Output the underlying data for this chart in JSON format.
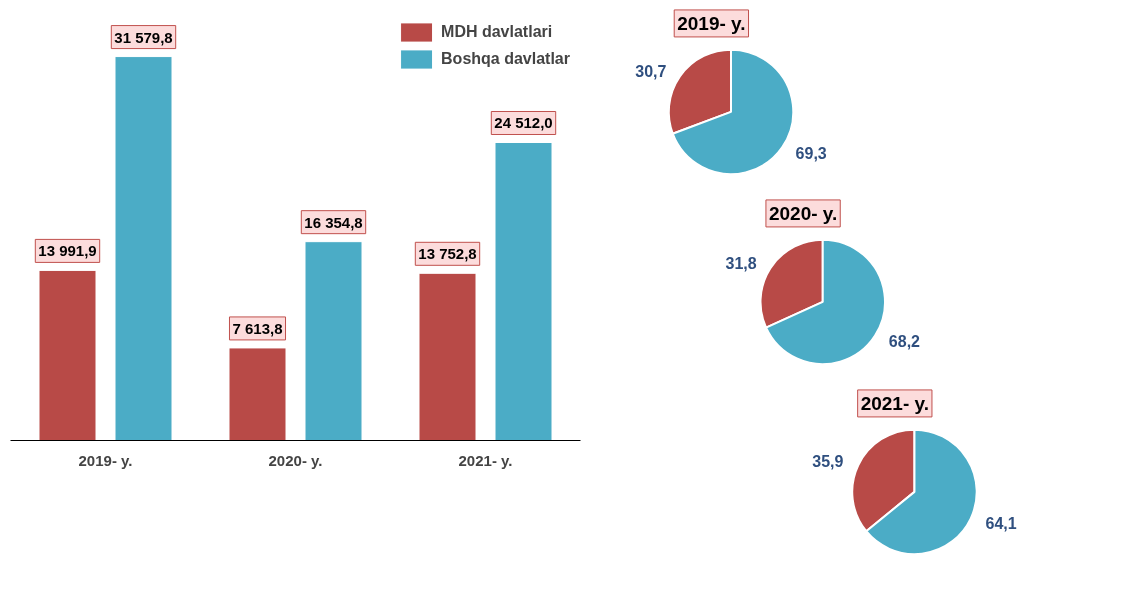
{
  "chart_data": [
    {
      "type": "bar",
      "categories": [
        "2019- y.",
        "2020- y.",
        "2021- y."
      ],
      "legend": "top right",
      "grid": false,
      "series": [
        {
          "name": "MDH davlatlari",
          "color": "#b84a47",
          "values": [
            13991.9,
            7613.8,
            13752.8
          ],
          "value_labels": [
            "13 991,9",
            "7 613,8",
            "13 752,8"
          ]
        },
        {
          "name": "Boshqa davlatlar",
          "color": "#4bacc6",
          "values": [
            31579.8,
            16354.8,
            24512.0
          ],
          "value_labels": [
            "31 579,8",
            "16 354,8",
            "24 512,0"
          ]
        }
      ]
    },
    {
      "type": "pie",
      "title": "2019- y.",
      "categories": [
        null,
        null
      ],
      "values": [
        30.7,
        69.3
      ],
      "colors": [
        "#b84a47",
        "#4bacc6"
      ],
      "value_labels": [
        "30,7",
        "69,3"
      ]
    },
    {
      "type": "pie",
      "title": "2020- y.",
      "categories": [
        null,
        null
      ],
      "values": [
        31.8,
        68.2
      ],
      "colors": [
        "#b84a47",
        "#4bacc6"
      ],
      "value_labels": [
        "31,8",
        "68,2"
      ]
    },
    {
      "type": "pie",
      "title": "2021- y.",
      "categories": [
        null,
        null
      ],
      "values": [
        35.9,
        64.1
      ],
      "colors": [
        "#b84a47",
        "#4bacc6"
      ],
      "value_labels": [
        "35,9",
        "64,1"
      ]
    }
  ]
}
